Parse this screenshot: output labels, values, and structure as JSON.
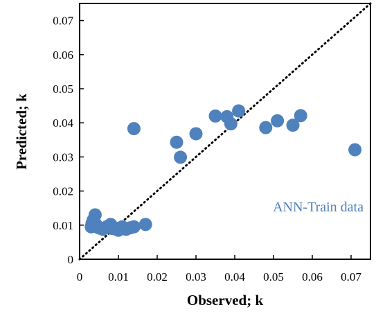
{
  "chart_data": {
    "type": "scatter",
    "title": "",
    "xlabel": "Observed; k",
    "ylabel": "Predicted; k",
    "xlim": [
      0,
      0.075
    ],
    "ylim": [
      0,
      0.075
    ],
    "xticks": [
      "0",
      "0.01",
      "0.02",
      "0.03",
      "0.04",
      "0.05",
      "0.06",
      "0.07"
    ],
    "yticks": [
      "0",
      "0.01",
      "0.02",
      "0.03",
      "0.04",
      "0.05",
      "0.06",
      "0.07"
    ],
    "grid": false,
    "legend": "none",
    "reference_line": {
      "style": "dotted",
      "from": [
        0,
        0
      ],
      "to": [
        0.075,
        0.075
      ],
      "color": "#000000"
    },
    "annotation": "ANN-Train data",
    "marker_color": "#4F81BD",
    "series": [
      {
        "x": [
          0.003,
          0.0032,
          0.0035,
          0.0037,
          0.004,
          0.0042,
          0.0045,
          0.005,
          0.0055,
          0.006,
          0.0065,
          0.007,
          0.0075,
          0.008,
          0.0085,
          0.009,
          0.0095,
          0.01,
          0.0105,
          0.011,
          0.012,
          0.013,
          0.014,
          0.017,
          0.014,
          0.025,
          0.026,
          0.03,
          0.035,
          0.038,
          0.039,
          0.041,
          0.048,
          0.051,
          0.055,
          0.057,
          0.071
        ],
        "y": [
          0.0095,
          0.0105,
          0.0115,
          0.0098,
          0.013,
          0.0102,
          0.0095,
          0.0092,
          0.009,
          0.0088,
          0.0092,
          0.0095,
          0.0098,
          0.0102,
          0.009,
          0.0092,
          0.0088,
          0.0085,
          0.0092,
          0.0095,
          0.0088,
          0.0092,
          0.0095,
          0.0102,
          0.0383,
          0.0343,
          0.0299,
          0.0368,
          0.042,
          0.0418,
          0.0397,
          0.0435,
          0.0386,
          0.0406,
          0.0393,
          0.0421,
          0.0321
        ]
      }
    ]
  }
}
